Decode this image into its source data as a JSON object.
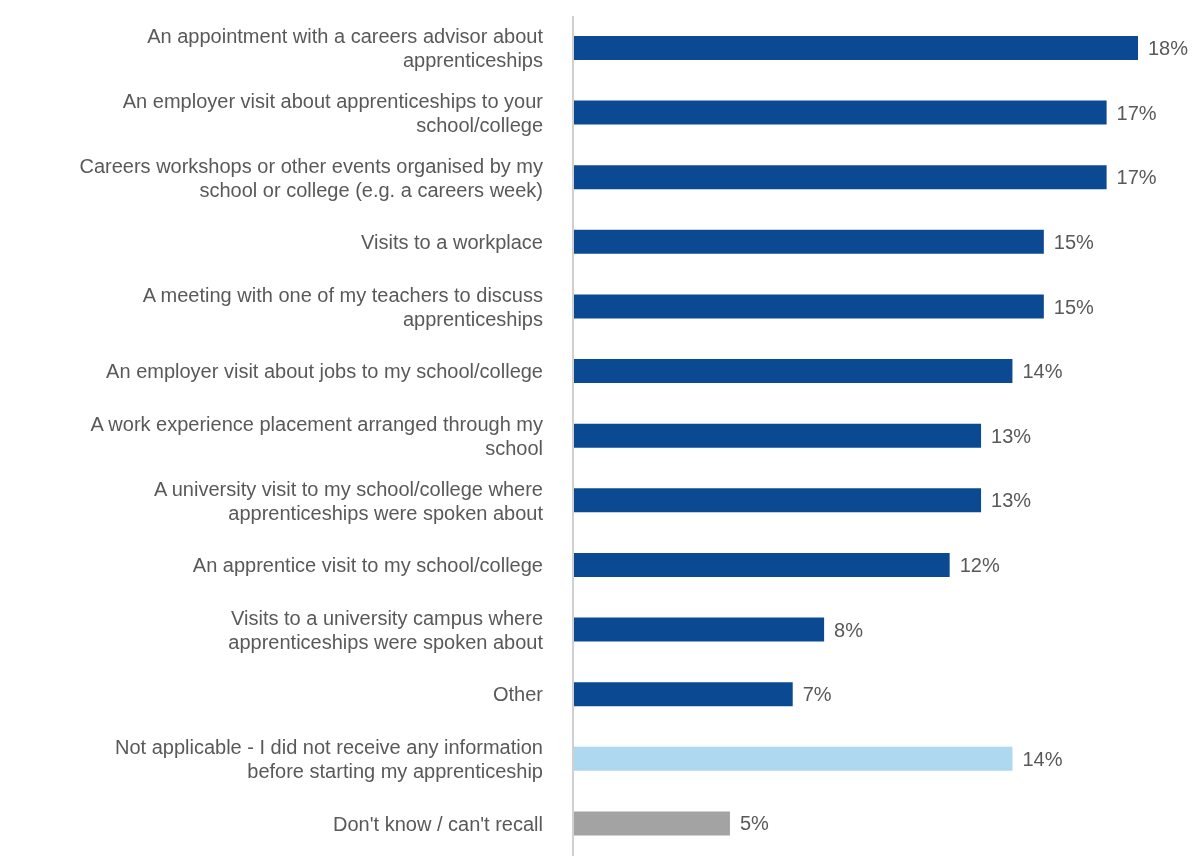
{
  "chart_data": {
    "type": "bar",
    "orientation": "horizontal",
    "categories": [
      "An appointment with a careers advisor about apprenticeships",
      "An employer visit about apprenticeships to your school/college",
      "Careers workshops or other events organised by my school or college (e.g. a careers week)",
      "Visits to a workplace",
      "A meeting with one of my teachers to discuss apprenticeships",
      "An employer visit about jobs to my school/college",
      "A work experience placement arranged through my school",
      "A university visit to my school/college where apprenticeships were spoken about",
      "An apprentice visit to my school/college",
      "Visits to a university campus where apprenticeships were spoken about",
      "Other",
      "Not applicable - I did not receive any information before starting my apprenticeship",
      "Don't know / can't recall"
    ],
    "values": [
      18,
      17,
      17,
      15,
      15,
      14,
      13,
      13,
      12,
      8,
      7,
      14,
      5
    ],
    "value_labels": [
      "18%",
      "17%",
      "17%",
      "15%",
      "15%",
      "14%",
      "13%",
      "13%",
      "12%",
      "8%",
      "7%",
      "14%",
      "5%"
    ],
    "colors": [
      "#0b4a92",
      "#0b4a92",
      "#0b4a92",
      "#0b4a92",
      "#0b4a92",
      "#0b4a92",
      "#0b4a92",
      "#0b4a92",
      "#0b4a92",
      "#0b4a92",
      "#0b4a92",
      "#add8ef",
      "#a3a3a3"
    ]
  }
}
